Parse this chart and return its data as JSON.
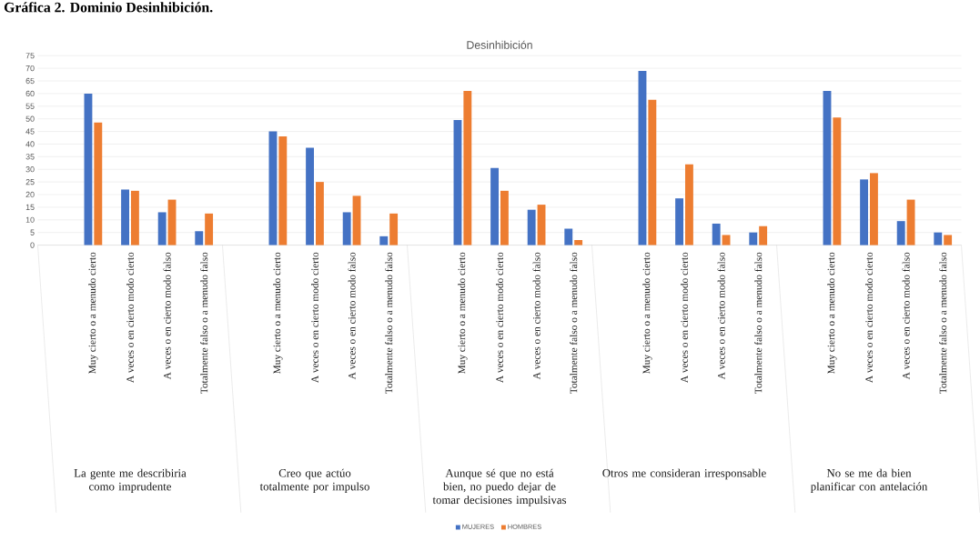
{
  "chart_data": {
    "type": "bar",
    "title": "Desinhibición",
    "categories": [
      null,
      "Muy cierto o a menudo cierto",
      "A veces o en cierto modo cierto",
      "A veces o en cierto modo falso",
      "Totalmente falso o a menudo falso",
      null,
      "Muy cierto o a menudo cierto",
      "A veces o en cierto modo cierto",
      "A veces o en cierto modo falso",
      "Totalmente falso o a menudo falso",
      null,
      "Muy cierto o a menudo cierto",
      "A veces o en cierto modo cierto",
      "A veces o en cierto modo falso",
      "Totalmente falso o a menudo falso",
      null,
      "Muy cierto o a menudo cierto",
      "A veces o en cierto modo cierto",
      "A veces o en cierto modo falso",
      "Totalmente falso o a menudo falso",
      null,
      "Muy cierto o a menudo cierto",
      "A veces o en cierto modo cierto",
      "A veces o en cierto modo falso",
      "Totalmente falso o a menudo falso"
    ],
    "series": [
      {
        "name": "MUJERES",
        "color": "#4472c4",
        "values": [
          null,
          60,
          22,
          13,
          5.5,
          null,
          45,
          38.5,
          13,
          3.5,
          null,
          49.5,
          30.5,
          14,
          6.5,
          null,
          69,
          18.5,
          8.5,
          5,
          null,
          61,
          26,
          9.5,
          5
        ]
      },
      {
        "name": "HOMBRES",
        "color": "#ed7d31",
        "values": [
          null,
          48.5,
          21.5,
          18,
          12.5,
          null,
          43,
          25,
          19.5,
          12.5,
          null,
          61,
          21.5,
          16,
          2,
          null,
          57.5,
          32,
          4,
          7.5,
          null,
          50.5,
          28.5,
          18,
          4
        ]
      }
    ],
    "ylim": [
      0,
      75
    ],
    "yticks": [
      0,
      5,
      10,
      15,
      20,
      25,
      30,
      35,
      40,
      45,
      50,
      55,
      60,
      65,
      70,
      75
    ],
    "grid": "y",
    "legend": "bottom",
    "annotations": [
      "Gráfica 2. Dominio Desinhibición.",
      "La gente me describiria como imprudente",
      "Creo que actúo totalmente por impulso",
      "Aunque sé que no está bien, no puedo dejar de tomar decisiones impulsivas",
      "Otros me consideran irresponsable",
      "No se me da bien planificar con antelación"
    ]
  }
}
